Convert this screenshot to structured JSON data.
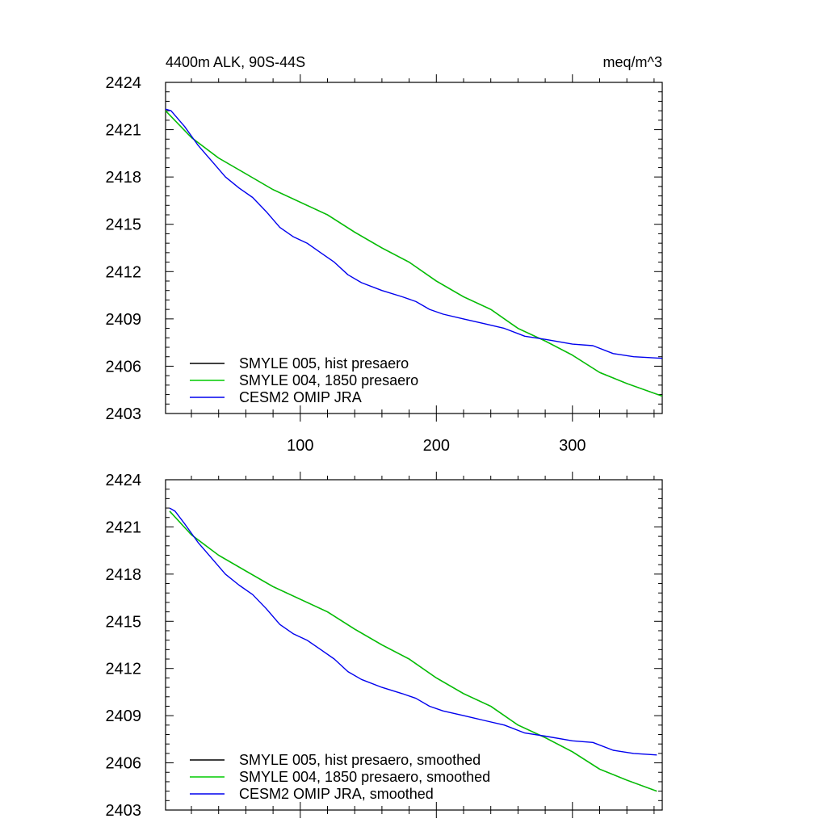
{
  "chart_data": [
    {
      "type": "line",
      "title_left": "4400m ALK, 90S-44S",
      "title_right": "meq/m^3",
      "xlim": [
        1,
        366
      ],
      "ylim": [
        2403,
        2424
      ],
      "x_ticks": [
        100,
        200,
        300
      ],
      "x_tick_labels": [
        "100",
        "200",
        "300"
      ],
      "y_ticks": [
        2403,
        2406,
        2409,
        2412,
        2415,
        2418,
        2421,
        2424
      ],
      "y_tick_labels": [
        "2403",
        "2406",
        "2409",
        "2412",
        "2415",
        "2418",
        "2421",
        "2424"
      ],
      "grid": false,
      "legend_position": "bottom-left",
      "series": [
        {
          "name": "SMYLE 005, hist presaero",
          "color": "#000000",
          "x": [
            1,
            20,
            40,
            60,
            80,
            100,
            120,
            140,
            160,
            180,
            200,
            220,
            240,
            260,
            280,
            300,
            320,
            340,
            366
          ],
          "y": [
            2422.2,
            2420.5,
            2419.2,
            2418.2,
            2417.2,
            2416.4,
            2415.6,
            2414.5,
            2413.5,
            2412.6,
            2411.4,
            2410.4,
            2409.6,
            2408.4,
            2407.6,
            2406.7,
            2405.6,
            2404.9,
            2404.1
          ]
        },
        {
          "name": "SMYLE 004, 1850 presaero",
          "color": "#00cc00",
          "x": [
            1,
            20,
            40,
            60,
            80,
            100,
            120,
            140,
            160,
            180,
            200,
            220,
            240,
            260,
            280,
            300,
            320,
            340,
            366
          ],
          "y": [
            2422.2,
            2420.5,
            2419.2,
            2418.2,
            2417.2,
            2416.4,
            2415.6,
            2414.5,
            2413.5,
            2412.6,
            2411.4,
            2410.4,
            2409.6,
            2408.4,
            2407.6,
            2406.7,
            2405.6,
            2404.9,
            2404.1
          ]
        },
        {
          "name": "CESM2 OMIP JRA",
          "color": "#0000ee",
          "x": [
            1,
            5,
            15,
            25,
            35,
            45,
            55,
            65,
            75,
            85,
            95,
            105,
            115,
            125,
            135,
            145,
            160,
            175,
            185,
            195,
            205,
            220,
            235,
            250,
            265,
            280,
            300,
            315,
            330,
            345,
            366
          ],
          "y": [
            2422.3,
            2422.2,
            2421.2,
            2420.0,
            2419.0,
            2418.0,
            2417.3,
            2416.7,
            2415.8,
            2414.8,
            2414.2,
            2413.8,
            2413.2,
            2412.6,
            2411.8,
            2411.3,
            2410.8,
            2410.4,
            2410.1,
            2409.6,
            2409.3,
            2409.0,
            2408.7,
            2408.4,
            2407.9,
            2407.7,
            2407.4,
            2407.3,
            2406.8,
            2406.6,
            2406.5
          ]
        }
      ]
    },
    {
      "type": "line",
      "xlim": [
        1,
        366
      ],
      "ylim": [
        2403,
        2424
      ],
      "x_ticks": [
        100,
        200,
        300
      ],
      "y_ticks": [
        2403,
        2406,
        2409,
        2412,
        2415,
        2418,
        2421,
        2424
      ],
      "y_tick_labels": [
        "2403",
        "2406",
        "2409",
        "2412",
        "2415",
        "2418",
        "2421",
        "2424"
      ],
      "grid": false,
      "legend_position": "bottom-left",
      "series": [
        {
          "name": "SMYLE 005, hist presaero, smoothed",
          "color": "#000000",
          "x": [
            4,
            20,
            40,
            60,
            80,
            100,
            120,
            140,
            160,
            180,
            200,
            220,
            240,
            260,
            280,
            300,
            320,
            340,
            362
          ],
          "y": [
            2422.0,
            2420.5,
            2419.2,
            2418.2,
            2417.2,
            2416.4,
            2415.6,
            2414.5,
            2413.5,
            2412.6,
            2411.4,
            2410.4,
            2409.6,
            2408.4,
            2407.6,
            2406.7,
            2405.6,
            2404.9,
            2404.2
          ]
        },
        {
          "name": "SMYLE 004, 1850 presaero, smoothed",
          "color": "#00cc00",
          "x": [
            4,
            20,
            40,
            60,
            80,
            100,
            120,
            140,
            160,
            180,
            200,
            220,
            240,
            260,
            280,
            300,
            320,
            340,
            362
          ],
          "y": [
            2422.0,
            2420.5,
            2419.2,
            2418.2,
            2417.2,
            2416.4,
            2415.6,
            2414.5,
            2413.5,
            2412.6,
            2411.4,
            2410.4,
            2409.6,
            2408.4,
            2407.6,
            2406.7,
            2405.6,
            2404.9,
            2404.2
          ]
        },
        {
          "name": "CESM2 OMIP JRA, smoothed",
          "color": "#0000ee",
          "x": [
            4,
            8,
            15,
            25,
            35,
            45,
            55,
            65,
            75,
            85,
            95,
            105,
            115,
            125,
            135,
            145,
            160,
            175,
            185,
            195,
            205,
            220,
            235,
            250,
            265,
            280,
            300,
            315,
            330,
            345,
            362
          ],
          "y": [
            2422.2,
            2422.0,
            2421.2,
            2420.0,
            2419.0,
            2418.0,
            2417.3,
            2416.7,
            2415.8,
            2414.8,
            2414.2,
            2413.8,
            2413.2,
            2412.6,
            2411.8,
            2411.3,
            2410.8,
            2410.4,
            2410.1,
            2409.6,
            2409.3,
            2409.0,
            2408.7,
            2408.4,
            2407.9,
            2407.7,
            2407.4,
            2407.3,
            2406.8,
            2406.6,
            2406.5
          ]
        }
      ]
    }
  ]
}
